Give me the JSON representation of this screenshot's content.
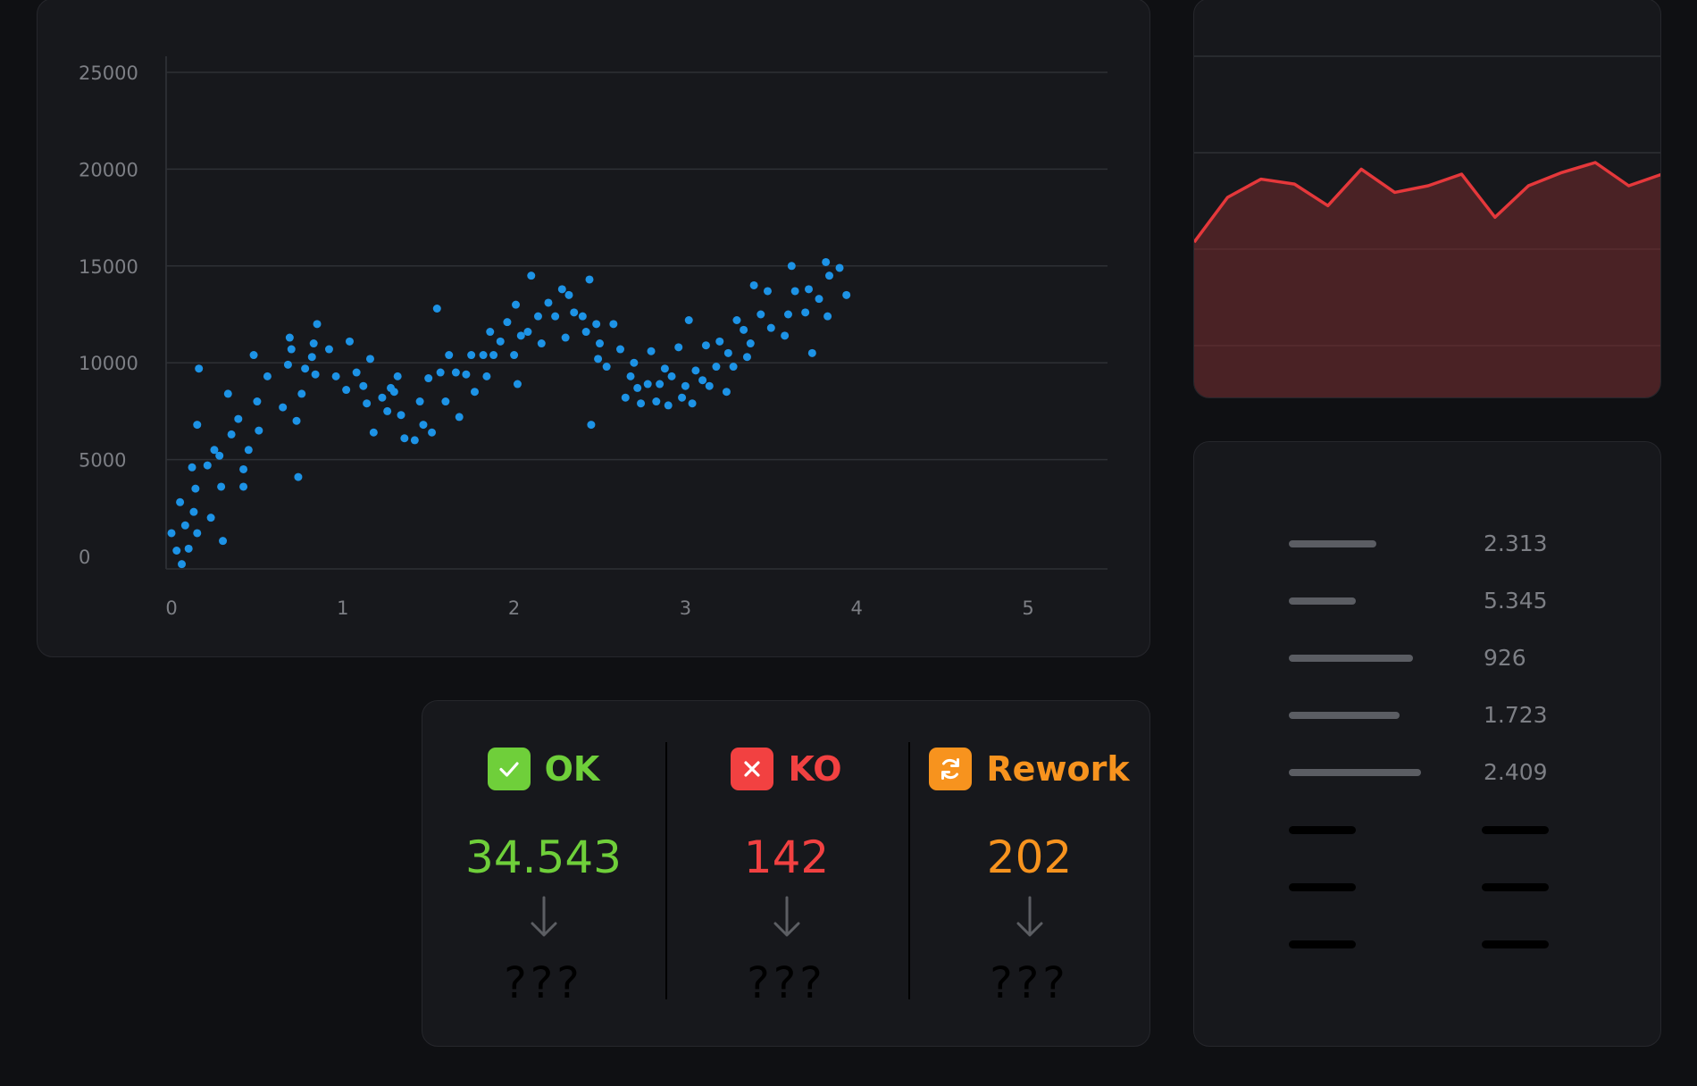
{
  "scatter": {
    "y_tick_labels": [
      "25000",
      "20000",
      "15000",
      "10000",
      "5000",
      "0"
    ],
    "x_tick_labels": [
      "0",
      "1",
      "2",
      "3",
      "4",
      "5"
    ],
    "point_color": "#1d93e6"
  },
  "area_chart": {
    "line_color": "#e5383b",
    "fill_color": "#4a2225"
  },
  "metrics_list": {
    "items": [
      {
        "value": "2.313",
        "bar_fraction": 0.66
      },
      {
        "value": "5.345",
        "bar_fraction": 0.51
      },
      {
        "value": "926",
        "bar_fraction": 0.94
      },
      {
        "value": "1.723",
        "bar_fraction": 0.84
      },
      {
        "value": "2.409",
        "bar_fraction": 1.0
      }
    ],
    "placeholder_rows": 3
  },
  "status": {
    "ok": {
      "label": "OK",
      "value": "34.543",
      "unknown": "???",
      "color": "#6fcf3a",
      "icon": "check-icon"
    },
    "ko": {
      "label": "KO",
      "value": "142",
      "unknown": "???",
      "color": "#f24141",
      "icon": "close-icon"
    },
    "rework": {
      "label": "Rework",
      "value": "202",
      "unknown": "???",
      "color": "#f7931e",
      "icon": "refresh-icon"
    }
  },
  "chart_data": [
    {
      "type": "scatter",
      "title": "",
      "xlabel": "",
      "ylabel": "",
      "xlim": [
        0,
        5
      ],
      "ylim": [
        0,
        25000
      ],
      "x_ticks": [
        0,
        1,
        2,
        3,
        4,
        5
      ],
      "y_ticks": [
        0,
        5000,
        10000,
        15000,
        20000,
        25000
      ],
      "grid": "horizontal",
      "series": [
        {
          "points": [
            [
              0.0,
              1200
            ],
            [
              0.03,
              300
            ],
            [
              0.05,
              2800
            ],
            [
              0.06,
              -400
            ],
            [
              0.08,
              1600
            ],
            [
              0.1,
              400
            ],
            [
              0.12,
              4600
            ],
            [
              0.13,
              2300
            ],
            [
              0.14,
              3500
            ],
            [
              0.15,
              1200
            ],
            [
              0.15,
              6800
            ],
            [
              0.16,
              9700
            ],
            [
              0.21,
              4700
            ],
            [
              0.23,
              2000
            ],
            [
              0.25,
              5500
            ],
            [
              0.28,
              5200
            ],
            [
              0.29,
              3600
            ],
            [
              0.3,
              800
            ],
            [
              0.33,
              8400
            ],
            [
              0.35,
              6300
            ],
            [
              0.39,
              7100
            ],
            [
              0.42,
              4500
            ],
            [
              0.42,
              3600
            ],
            [
              0.45,
              5500
            ],
            [
              0.48,
              10400
            ],
            [
              0.5,
              8000
            ],
            [
              0.51,
              6500
            ],
            [
              0.56,
              9300
            ],
            [
              0.65,
              7700
            ],
            [
              0.68,
              9900
            ],
            [
              0.69,
              11300
            ],
            [
              0.7,
              10700
            ],
            [
              0.73,
              7000
            ],
            [
              0.74,
              4100
            ],
            [
              0.76,
              8400
            ],
            [
              0.78,
              9700
            ],
            [
              0.82,
              10300
            ],
            [
              0.83,
              11000
            ],
            [
              0.84,
              9400
            ],
            [
              0.85,
              12000
            ],
            [
              0.92,
              10700
            ],
            [
              0.96,
              9300
            ],
            [
              1.02,
              8600
            ],
            [
              1.04,
              11100
            ],
            [
              1.08,
              9500
            ],
            [
              1.12,
              8800
            ],
            [
              1.14,
              7900
            ],
            [
              1.16,
              10200
            ],
            [
              1.18,
              6400
            ],
            [
              1.23,
              8200
            ],
            [
              1.26,
              7500
            ],
            [
              1.28,
              8700
            ],
            [
              1.3,
              8500
            ],
            [
              1.32,
              9300
            ],
            [
              1.34,
              7300
            ],
            [
              1.36,
              6100
            ],
            [
              1.42,
              6000
            ],
            [
              1.45,
              8000
            ],
            [
              1.47,
              6800
            ],
            [
              1.5,
              9200
            ],
            [
              1.52,
              6400
            ],
            [
              1.55,
              12800
            ],
            [
              1.57,
              9500
            ],
            [
              1.6,
              8000
            ],
            [
              1.62,
              10400
            ],
            [
              1.66,
              9500
            ],
            [
              1.68,
              7200
            ],
            [
              1.72,
              9400
            ],
            [
              1.75,
              10400
            ],
            [
              1.77,
              8500
            ],
            [
              1.82,
              10400
            ],
            [
              1.84,
              9300
            ],
            [
              1.86,
              11600
            ],
            [
              1.88,
              10400
            ],
            [
              1.92,
              11100
            ],
            [
              1.96,
              12100
            ],
            [
              2.0,
              10400
            ],
            [
              2.01,
              13000
            ],
            [
              2.02,
              8900
            ],
            [
              2.04,
              11400
            ],
            [
              2.08,
              11600
            ],
            [
              2.1,
              14500
            ],
            [
              2.14,
              12400
            ],
            [
              2.16,
              11000
            ],
            [
              2.2,
              13100
            ],
            [
              2.24,
              12400
            ],
            [
              2.28,
              13800
            ],
            [
              2.3,
              11300
            ],
            [
              2.32,
              13500
            ],
            [
              2.35,
              12600
            ],
            [
              2.4,
              12400
            ],
            [
              2.42,
              11600
            ],
            [
              2.44,
              14300
            ],
            [
              2.45,
              6800
            ],
            [
              2.48,
              12000
            ],
            [
              2.49,
              10200
            ],
            [
              2.5,
              11000
            ],
            [
              2.54,
              9800
            ],
            [
              2.58,
              12000
            ],
            [
              2.62,
              10700
            ],
            [
              2.65,
              8200
            ],
            [
              2.68,
              9300
            ],
            [
              2.7,
              10000
            ],
            [
              2.72,
              8700
            ],
            [
              2.74,
              7900
            ],
            [
              2.78,
              8900
            ],
            [
              2.8,
              10600
            ],
            [
              2.83,
              8000
            ],
            [
              2.85,
              8900
            ],
            [
              2.88,
              9700
            ],
            [
              2.9,
              7800
            ],
            [
              2.92,
              9300
            ],
            [
              2.96,
              10800
            ],
            [
              2.98,
              8200
            ],
            [
              3.0,
              8800
            ],
            [
              3.02,
              12200
            ],
            [
              3.04,
              7900
            ],
            [
              3.06,
              9600
            ],
            [
              3.1,
              9100
            ],
            [
              3.12,
              10900
            ],
            [
              3.14,
              8800
            ],
            [
              3.18,
              9800
            ],
            [
              3.2,
              11100
            ],
            [
              3.24,
              8500
            ],
            [
              3.25,
              10500
            ],
            [
              3.28,
              9800
            ],
            [
              3.3,
              12200
            ],
            [
              3.34,
              11700
            ],
            [
              3.36,
              10300
            ],
            [
              3.38,
              11000
            ],
            [
              3.4,
              14000
            ],
            [
              3.44,
              12500
            ],
            [
              3.48,
              13700
            ],
            [
              3.5,
              11800
            ],
            [
              3.58,
              11400
            ],
            [
              3.6,
              12500
            ],
            [
              3.62,
              15000
            ],
            [
              3.64,
              13700
            ],
            [
              3.7,
              12600
            ],
            [
              3.72,
              13800
            ],
            [
              3.74,
              10500
            ],
            [
              3.78,
              13300
            ],
            [
              3.82,
              15200
            ],
            [
              3.83,
              12400
            ],
            [
              3.84,
              14500
            ],
            [
              3.9,
              14900
            ],
            [
              3.94,
              13500
            ]
          ]
        }
      ]
    },
    {
      "type": "area",
      "title": "",
      "xlabel": "",
      "ylabel": "",
      "grid": "horizontal",
      "series": [
        {
          "values": [
            15.5,
            18.2,
            19.3,
            19.0,
            17.7,
            19.9,
            18.5,
            18.9,
            19.6,
            17.0,
            18.9,
            19.7,
            20.3,
            18.9,
            19.6
          ]
        }
      ]
    }
  ]
}
